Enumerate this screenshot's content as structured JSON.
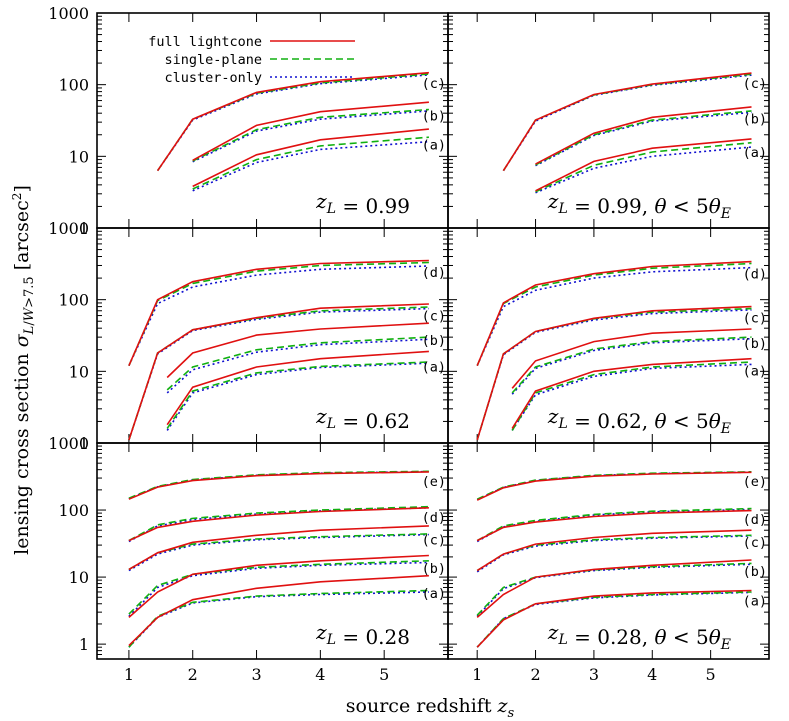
{
  "figure": {
    "ylabel": "lensing cross section σL/W>7.5 [arcsec2]",
    "xlabel": "source redshift zs"
  },
  "colors": {
    "full_lightcone": "#e01010",
    "single_plane": "#10b010",
    "cluster_only": "#1010d0"
  },
  "chart_data": [
    {
      "type": "line",
      "title": "zL = 0.99",
      "label_text": "z_L = 0.99",
      "xlim": [
        0.5,
        6.0
      ],
      "ylim": [
        1,
        1000
      ],
      "yscale": "log",
      "x_ticks": [
        "1",
        "2",
        "3",
        "4",
        "5"
      ],
      "y_ticks": [
        "1",
        "10",
        "100",
        "1000"
      ],
      "legend": {
        "placement": "top-left",
        "entries": [
          "full lightcone",
          "single-plane",
          "cluster-only"
        ]
      },
      "curves": [
        {
          "label": "(a)",
          "x": [
            2,
            3,
            4,
            5.7
          ],
          "full": [
            3.8,
            10.5,
            17,
            24
          ],
          "single": [
            3.5,
            9.0,
            14,
            18.5
          ],
          "cluster": [
            3.3,
            8.2,
            12.5,
            16
          ]
        },
        {
          "label": "(b)",
          "x": [
            2,
            3,
            4,
            5.7
          ],
          "full": [
            8.8,
            27,
            42,
            57
          ],
          "single": [
            8.6,
            23.5,
            35,
            45
          ],
          "cluster": [
            8.4,
            22.5,
            33,
            43
          ]
        },
        {
          "label": "(c)",
          "x": [
            1.45,
            2,
            3,
            4,
            5.7
          ],
          "full": [
            6.3,
            33,
            78,
            110,
            147
          ],
          "single": [
            6.3,
            33,
            76,
            106,
            141
          ],
          "cluster": [
            6.3,
            32,
            74,
            103,
            137
          ]
        }
      ]
    },
    {
      "type": "line",
      "title": "zL = 0.99, θ < 5θE",
      "label_text": "z_L = 0.99, θ < 5θ_E",
      "xlim": [
        0.5,
        6.0
      ],
      "ylim": [
        1,
        1000
      ],
      "yscale": "log",
      "x_ticks": [
        "1",
        "2",
        "3",
        "4",
        "5"
      ],
      "curves": [
        {
          "label": "(a)",
          "x": [
            2,
            3,
            4,
            5.7
          ],
          "full": [
            3.3,
            8.5,
            13,
            17.5
          ],
          "single": [
            3.2,
            7.5,
            11.5,
            15.5
          ],
          "cluster": [
            3.1,
            6.8,
            10,
            13.5
          ]
        },
        {
          "label": "(b)",
          "x": [
            2,
            3,
            4,
            5.7
          ],
          "full": [
            7.8,
            21,
            35,
            49
          ],
          "single": [
            7.6,
            20,
            32,
            43
          ],
          "cluster": [
            7.4,
            19.5,
            31,
            41
          ]
        },
        {
          "label": "(c)",
          "x": [
            1.45,
            2,
            3,
            4,
            5.7
          ],
          "full": [
            6.3,
            32,
            73,
            102,
            145
          ],
          "single": [
            6.3,
            32,
            72,
            100,
            140
          ],
          "cluster": [
            6.3,
            31,
            71,
            98,
            136
          ]
        }
      ]
    },
    {
      "type": "line",
      "title": "zL = 0.62",
      "label_text": "z_L = 0.62",
      "xlim": [
        0.5,
        6.0
      ],
      "ylim": [
        1,
        1000
      ],
      "yscale": "log",
      "x_ticks": [
        "1",
        "2",
        "3",
        "4",
        "5"
      ],
      "y_ticks": [
        "1",
        "10",
        "100",
        "1000"
      ],
      "curves": [
        {
          "label": "(a)",
          "x": [
            1.6,
            2,
            3,
            4,
            5.7
          ],
          "full": [
            1.8,
            6,
            11.5,
            15,
            19
          ],
          "single": [
            1.6,
            5.3,
            9.5,
            11.7,
            13.5
          ],
          "cluster": [
            1.5,
            5.0,
            9.0,
            11.3,
            13
          ]
        },
        {
          "label": "(b)",
          "x": [
            1.6,
            2,
            3,
            4,
            5.7
          ],
          "full": [
            8.2,
            18,
            32,
            39,
            47
          ],
          "single": [
            5.5,
            11.5,
            20,
            25,
            30
          ],
          "cluster": [
            5.0,
            10.5,
            18.5,
            23.5,
            28
          ]
        },
        {
          "label": "(c)",
          "x": [
            1,
            1.45,
            2,
            3,
            4,
            5.7
          ],
          "full": [
            1.1,
            18,
            38,
            56,
            76,
            87
          ],
          "single": [
            1.1,
            18,
            38,
            55,
            70,
            79
          ],
          "cluster": [
            1.1,
            17.5,
            37,
            53,
            67,
            75
          ]
        },
        {
          "label": "(d)",
          "x": [
            1,
            1.45,
            2,
            3,
            4,
            5.7
          ],
          "full": [
            12,
            100,
            178,
            265,
            320,
            352
          ],
          "single": [
            12,
            97,
            168,
            250,
            300,
            330
          ],
          "cluster": [
            12,
            88,
            150,
            220,
            265,
            295
          ]
        }
      ]
    },
    {
      "type": "line",
      "title": "zL = 0.62, θ < 5θE",
      "label_text": "z_L = 0.62, θ < 5θ_E",
      "xlim": [
        0.5,
        6.0
      ],
      "ylim": [
        1,
        1000
      ],
      "yscale": "log",
      "x_ticks": [
        "1",
        "2",
        "3",
        "4",
        "5"
      ],
      "curves": [
        {
          "label": "(a)",
          "x": [
            1.6,
            2,
            3,
            4,
            5.7
          ],
          "full": [
            1.6,
            5.3,
            10,
            12.5,
            15
          ],
          "single": [
            1.5,
            5.0,
            9.0,
            11.5,
            13.5
          ],
          "cluster": [
            1.5,
            4.7,
            8.5,
            11,
            12.5
          ]
        },
        {
          "label": "(b)",
          "x": [
            1.6,
            2,
            3,
            4,
            5.7
          ],
          "full": [
            5.8,
            14,
            26,
            34,
            39
          ],
          "single": [
            5.0,
            11.5,
            20.5,
            26,
            30
          ],
          "cluster": [
            4.8,
            11,
            19.5,
            25,
            28.5
          ]
        },
        {
          "label": "(c)",
          "x": [
            1,
            1.45,
            2,
            3,
            4,
            5.7
          ],
          "full": [
            1.1,
            17.5,
            36,
            55,
            70,
            80
          ],
          "single": [
            1.1,
            17.5,
            36,
            54,
            67,
            75
          ],
          "cluster": [
            1.1,
            17,
            35,
            52,
            64,
            72
          ]
        },
        {
          "label": "(d)",
          "x": [
            1,
            1.45,
            2,
            3,
            4,
            5.7
          ],
          "full": [
            12,
            90,
            160,
            230,
            290,
            340
          ],
          "single": [
            12,
            88,
            150,
            220,
            275,
            320
          ],
          "cluster": [
            12,
            80,
            135,
            200,
            245,
            280
          ]
        }
      ]
    },
    {
      "type": "line",
      "title": "zL = 0.28",
      "label_text": "z_L = 0.28",
      "xlim": [
        0.5,
        6.0
      ],
      "ylim": [
        0.6,
        1000
      ],
      "yscale": "log",
      "x_ticks": [
        "1",
        "2",
        "3",
        "4",
        "5"
      ],
      "y_ticks": [
        "1",
        "10",
        "100",
        "1000"
      ],
      "curves": [
        {
          "label": "(a)",
          "x": [
            1,
            1.45,
            2,
            3,
            4,
            5.7
          ],
          "full": [
            0.95,
            2.5,
            4.6,
            6.8,
            8.5,
            10.5
          ],
          "single": [
            0.9,
            2.6,
            4.2,
            5.2,
            5.7,
            6.3
          ],
          "cluster": [
            0.9,
            2.5,
            4.1,
            5.1,
            5.5,
            6.0
          ]
        },
        {
          "label": "(b)",
          "x": [
            1,
            1.45,
            2,
            3,
            4,
            5.7
          ],
          "full": [
            2.5,
            6,
            11,
            15,
            17.5,
            21
          ],
          "single": [
            2.8,
            7.5,
            11,
            14,
            15.5,
            17.5
          ],
          "cluster": [
            2.6,
            7,
            10.5,
            13.5,
            15,
            16.5
          ]
        },
        {
          "label": "(c)",
          "x": [
            1,
            1.45,
            2,
            3,
            4,
            5.7
          ],
          "full": [
            13,
            23,
            33,
            42,
            50,
            58
          ],
          "single": [
            13,
            23,
            31,
            37,
            40,
            44
          ],
          "cluster": [
            12.5,
            22,
            30,
            36,
            39,
            43
          ]
        },
        {
          "label": "(d)",
          "x": [
            1,
            1.45,
            2,
            3,
            4,
            5.7
          ],
          "full": [
            35,
            55,
            68,
            84,
            95,
            108
          ],
          "single": [
            35,
            60,
            75,
            90,
            100,
            112
          ],
          "cluster": [
            34,
            58,
            72,
            87,
            97,
            108
          ]
        },
        {
          "label": "(e)",
          "x": [
            1,
            1.45,
            2,
            3,
            4,
            5.7
          ],
          "full": [
            145,
            220,
            275,
            325,
            350,
            370
          ],
          "single": [
            150,
            225,
            285,
            335,
            360,
            378
          ],
          "cluster": [
            148,
            222,
            280,
            330,
            355,
            374
          ]
        }
      ]
    },
    {
      "type": "line",
      "title": "zL = 0.28, θ < 5θE",
      "label_text": "z_L = 0.28, θ < 5θ_E",
      "xlim": [
        0.5,
        6.0
      ],
      "ylim": [
        0.6,
        1000
      ],
      "yscale": "log",
      "x_ticks": [
        "1",
        "2",
        "3",
        "4",
        "5"
      ],
      "curves": [
        {
          "label": "(a)",
          "x": [
            1,
            1.45,
            2,
            3,
            4,
            5.7
          ],
          "full": [
            0.9,
            2.3,
            4.0,
            5.2,
            5.8,
            6.3
          ],
          "single": [
            0.9,
            2.4,
            4.0,
            5.0,
            5.5,
            6.0
          ],
          "cluster": [
            0.9,
            2.4,
            3.9,
            4.9,
            5.4,
            5.9
          ]
        },
        {
          "label": "(b)",
          "x": [
            1,
            1.45,
            2,
            3,
            4,
            5.7
          ],
          "full": [
            2.5,
            5.5,
            10,
            13,
            15,
            18
          ],
          "single": [
            2.7,
            7,
            10,
            12.8,
            14.3,
            16
          ],
          "cluster": [
            2.6,
            6.7,
            9.8,
            12.5,
            14,
            15.5
          ]
        },
        {
          "label": "(c)",
          "x": [
            1,
            1.45,
            2,
            3,
            4,
            5.7
          ],
          "full": [
            12.5,
            22,
            31,
            39,
            45,
            50
          ],
          "single": [
            12.5,
            22,
            30,
            36,
            39,
            42
          ],
          "cluster": [
            12,
            21.5,
            29,
            35,
            38,
            41
          ]
        },
        {
          "label": "(d)",
          "x": [
            1,
            1.45,
            2,
            3,
            4,
            5.7
          ],
          "full": [
            35,
            55,
            66,
            80,
            90,
            98
          ],
          "single": [
            35,
            58,
            70,
            86,
            96,
            105
          ],
          "cluster": [
            34,
            56,
            68,
            84,
            94,
            102
          ]
        },
        {
          "label": "(e)",
          "x": [
            1,
            1.45,
            2,
            3,
            4,
            5.7
          ],
          "full": [
            140,
            215,
            270,
            320,
            345,
            365
          ],
          "single": [
            145,
            220,
            280,
            330,
            355,
            372
          ],
          "cluster": [
            143,
            218,
            276,
            326,
            350,
            368
          ]
        }
      ]
    }
  ]
}
